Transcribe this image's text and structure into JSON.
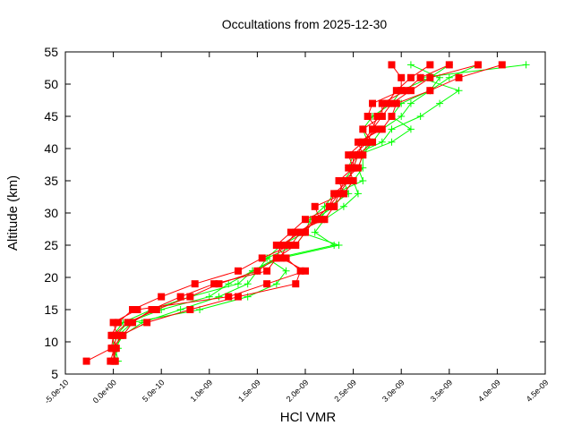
{
  "chart_data": {
    "type": "line",
    "title": "Occultations from 2025-12-30",
    "xlabel": "HCl VMR",
    "ylabel": "Altitude (km)",
    "xlim": [
      -5e-10,
      4.5e-09
    ],
    "ylim": [
      5,
      55
    ],
    "xticks": [
      "-5.0e-10",
      "0.0e+00",
      "5.0e-10",
      "1.0e-09",
      "1.5e-09",
      "2.0e-09",
      "2.5e-09",
      "3.0e-09",
      "3.5e-09",
      "4.0e-09",
      "4.5e-09"
    ],
    "xtick_values": [
      -5e-10,
      0,
      5e-10,
      1e-09,
      1.5e-09,
      2e-09,
      2.5e-09,
      3e-09,
      3.5e-09,
      4e-09,
      4.5e-09
    ],
    "yticks": [
      5,
      10,
      15,
      20,
      25,
      30,
      35,
      40,
      45,
      50,
      55
    ],
    "grid": false,
    "altitudes": [
      7,
      9,
      11,
      13,
      15,
      17,
      19,
      21,
      23,
      25,
      27,
      29,
      31,
      33,
      35,
      37,
      39,
      41,
      43,
      45,
      47,
      49,
      51,
      53
    ],
    "unit_scale": 1e-09,
    "series": [
      {
        "color": "#00ff00",
        "marker": "plus",
        "profiles": [
          [
            0.05,
            0.02,
            0.1,
            0.3,
            0.7,
            1.1,
            1.4,
            1.5,
            1.6,
            1.9,
            2.0,
            2.1,
            2.3,
            2.4,
            2.5,
            2.6,
            2.6,
            2.7,
            2.8,
            3.0,
            3.1,
            3.3,
            3.5,
            3.8
          ],
          [
            0.03,
            0.0,
            0.0,
            0.1,
            0.4,
            0.8,
            1.3,
            1.45,
            1.7,
            2.3,
            2.1,
            2.2,
            2.4,
            2.55,
            2.5,
            2.45,
            2.5,
            2.8,
            2.9,
            3.2,
            3.4,
            3.6,
            3.2,
            4.3
          ],
          [
            0.0,
            0.05,
            0.05,
            0.2,
            0.9,
            1.4,
            1.7,
            1.8,
            1.6,
            1.75,
            2.0,
            2.05,
            2.2,
            2.3,
            2.6,
            2.55,
            2.6,
            2.65,
            2.6,
            2.7,
            2.9,
            3.0,
            3.3,
            3.5
          ],
          [
            0.02,
            0.01,
            0.03,
            0.15,
            0.5,
            1.0,
            1.2,
            1.45,
            1.75,
            2.35,
            1.95,
            2.15,
            2.25,
            2.45,
            2.4,
            2.5,
            2.55,
            2.9,
            3.1,
            2.9,
            3.0,
            3.3,
            3.4,
            3.1
          ]
        ]
      },
      {
        "color": "#ff0000",
        "marker": "square",
        "profiles": [
          [
            -0.28,
            -0.02,
            0.0,
            0.15,
            0.45,
            0.8,
            1.1,
            1.5,
            1.7,
            1.75,
            1.95,
            2.1,
            2.25,
            2.3,
            2.45,
            2.5,
            2.55,
            2.6,
            2.7,
            2.75,
            2.85,
            2.95,
            3.1,
            3.3
          ],
          [
            -0.03,
            0.01,
            0.08,
            0.35,
            0.8,
            1.3,
            1.9,
            1.95,
            1.8,
            1.7,
            1.85,
            2.0,
            2.3,
            2.4,
            2.5,
            2.45,
            2.55,
            2.7,
            2.6,
            2.8,
            2.9,
            3.1,
            3.3,
            3.8
          ],
          [
            0.0,
            0.03,
            -0.02,
            0.05,
            0.2,
            0.5,
            0.85,
            1.3,
            1.55,
            1.85,
            1.95,
            2.15,
            2.1,
            2.4,
            2.35,
            2.5,
            2.45,
            2.6,
            2.75,
            2.65,
            2.7,
            3.0,
            3.0,
            2.9
          ],
          [
            0.01,
            -0.01,
            0.1,
            0.2,
            0.4,
            0.7,
            1.05,
            1.6,
            1.7,
            1.9,
            2.0,
            2.1,
            2.25,
            2.35,
            2.4,
            2.55,
            2.6,
            2.55,
            2.8,
            2.9,
            2.95,
            3.3,
            3.6,
            4.05
          ],
          [
            0.02,
            0.0,
            0.04,
            0.0,
            0.25,
            1.2,
            1.6,
            2.0,
            1.75,
            1.8,
            1.9,
            2.2,
            2.3,
            2.35,
            2.45,
            2.5,
            2.5,
            2.65,
            2.7,
            2.8,
            2.8,
            3.05,
            3.2,
            3.5
          ]
        ]
      }
    ]
  }
}
